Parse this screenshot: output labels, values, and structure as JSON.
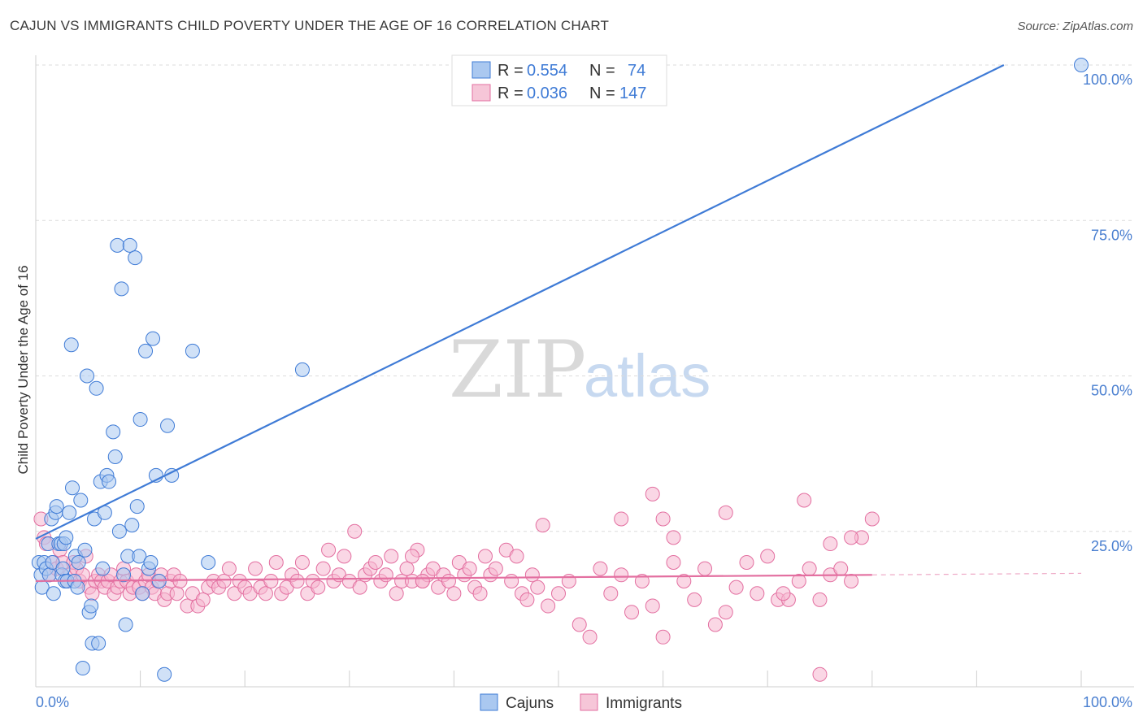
{
  "title": "CAJUN VS IMMIGRANTS CHILD POVERTY UNDER THE AGE OF 16 CORRELATION CHART",
  "source": "Source: ZipAtlas.com",
  "watermark": {
    "zip": "ZIP",
    "atlas": "atlas"
  },
  "colors": {
    "cajuns": "#3f7bd6",
    "immigrants": "#e36fa0",
    "cajun_fill": "#aac8f0",
    "immigrant_fill": "#f6b7cf"
  },
  "legend": {
    "r_label": "R =",
    "n_label": "N =",
    "rows": [
      {
        "r": "0.554",
        "n": "74"
      },
      {
        "r": "0.036",
        "n": "147"
      }
    ]
  },
  "bottom_legend": [
    "Cajuns",
    "Immigrants"
  ],
  "chart_data": {
    "type": "scatter",
    "ylabel": "Child Poverty Under the Age of 16",
    "xlim": [
      0,
      100
    ],
    "ylim": [
      0,
      100
    ],
    "x_tick_labels": {
      "left": "0.0%",
      "right": "100.0%"
    },
    "y_tick_labels": [
      {
        "value": 100,
        "label": "100.0%"
      },
      {
        "value": 75,
        "label": "75.0%"
      },
      {
        "value": 50,
        "label": "50.0%"
      },
      {
        "value": 25,
        "label": "25.0%"
      }
    ],
    "series": [
      {
        "name": "Cajuns",
        "trend": {
          "x0": 0,
          "y0": 23.8,
          "x1": 92.6,
          "y1": 100
        },
        "points": [
          [
            0.3,
            20
          ],
          [
            0.5,
            18
          ],
          [
            0.6,
            16
          ],
          [
            0.8,
            20
          ],
          [
            1,
            19
          ],
          [
            1.2,
            23
          ],
          [
            1.3,
            18
          ],
          [
            1.5,
            27
          ],
          [
            1.6,
            20
          ],
          [
            1.7,
            15
          ],
          [
            1.9,
            28
          ],
          [
            2,
            29
          ],
          [
            2.2,
            23
          ],
          [
            2.4,
            23
          ],
          [
            2.5,
            18
          ],
          [
            2.6,
            19
          ],
          [
            2.7,
            23
          ],
          [
            2.8,
            17
          ],
          [
            2.9,
            24
          ],
          [
            3,
            17
          ],
          [
            3.2,
            28
          ],
          [
            3.4,
            55
          ],
          [
            3.5,
            32
          ],
          [
            3.7,
            17
          ],
          [
            3.8,
            21
          ],
          [
            4,
            16
          ],
          [
            4.1,
            20
          ],
          [
            4.3,
            30
          ],
          [
            4.5,
            3
          ],
          [
            4.7,
            22
          ],
          [
            4.9,
            50
          ],
          [
            5.1,
            12
          ],
          [
            5.3,
            13
          ],
          [
            5.4,
            7
          ],
          [
            5.6,
            27
          ],
          [
            5.8,
            48
          ],
          [
            6,
            7
          ],
          [
            6.2,
            33
          ],
          [
            6.4,
            19
          ],
          [
            6.6,
            28
          ],
          [
            6.8,
            34
          ],
          [
            7,
            33
          ],
          [
            7.4,
            41
          ],
          [
            7.6,
            37
          ],
          [
            7.8,
            71
          ],
          [
            8,
            25
          ],
          [
            8.2,
            64
          ],
          [
            8.4,
            18
          ],
          [
            8.6,
            10
          ],
          [
            8.8,
            21
          ],
          [
            9,
            71
          ],
          [
            9.2,
            26
          ],
          [
            9.5,
            69
          ],
          [
            9.7,
            29
          ],
          [
            9.9,
            21
          ],
          [
            10,
            43
          ],
          [
            10.2,
            15
          ],
          [
            10.5,
            54
          ],
          [
            10.8,
            19
          ],
          [
            11,
            20
          ],
          [
            11.2,
            56
          ],
          [
            11.5,
            34
          ],
          [
            11.8,
            17
          ],
          [
            12.3,
            2
          ],
          [
            12.6,
            42
          ],
          [
            13,
            34
          ],
          [
            15,
            54
          ],
          [
            16.5,
            20
          ],
          [
            25.5,
            51
          ],
          [
            100,
            100
          ]
        ]
      },
      {
        "name": "Immigrants",
        "trend": {
          "x0": 0,
          "y0": 17,
          "x1": 80,
          "y1": 18
        },
        "points": [
          [
            0.5,
            27
          ],
          [
            0.8,
            24
          ],
          [
            1,
            23
          ],
          [
            1.3,
            18
          ],
          [
            1.6,
            20
          ],
          [
            2,
            19
          ],
          [
            2.3,
            22
          ],
          [
            2.6,
            20
          ],
          [
            3,
            17
          ],
          [
            3.3,
            18
          ],
          [
            3.6,
            20
          ],
          [
            3.9,
            19
          ],
          [
            4.2,
            17
          ],
          [
            4.5,
            18
          ],
          [
            4.8,
            21
          ],
          [
            5.1,
            16
          ],
          [
            5.4,
            15
          ],
          [
            5.7,
            17
          ],
          [
            6,
            18
          ],
          [
            6.3,
            17
          ],
          [
            6.6,
            16
          ],
          [
            6.9,
            17
          ],
          [
            7.2,
            18
          ],
          [
            7.5,
            15
          ],
          [
            7.8,
            16
          ],
          [
            8.1,
            17
          ],
          [
            8.4,
            19
          ],
          [
            8.7,
            17
          ],
          [
            9,
            15
          ],
          [
            9.3,
            16
          ],
          [
            9.6,
            18
          ],
          [
            9.9,
            16
          ],
          [
            10.2,
            15
          ],
          [
            10.5,
            17
          ],
          [
            10.8,
            18
          ],
          [
            11.1,
            16
          ],
          [
            11.4,
            15
          ],
          [
            11.7,
            17
          ],
          [
            12,
            18
          ],
          [
            12.3,
            14
          ],
          [
            12.6,
            15
          ],
          [
            12.9,
            17
          ],
          [
            13.2,
            18
          ],
          [
            13.5,
            15
          ],
          [
            13.8,
            17
          ],
          [
            14.5,
            13
          ],
          [
            15,
            15
          ],
          [
            15.5,
            13
          ],
          [
            16,
            14
          ],
          [
            16.5,
            16
          ],
          [
            17,
            17
          ],
          [
            17.5,
            16
          ],
          [
            18,
            17
          ],
          [
            18.5,
            19
          ],
          [
            19,
            15
          ],
          [
            19.5,
            17
          ],
          [
            20,
            16
          ],
          [
            20.5,
            15
          ],
          [
            21,
            19
          ],
          [
            21.5,
            16
          ],
          [
            22,
            15
          ],
          [
            22.5,
            17
          ],
          [
            23,
            20
          ],
          [
            23.5,
            15
          ],
          [
            24,
            16
          ],
          [
            24.5,
            18
          ],
          [
            25,
            17
          ],
          [
            25.5,
            20
          ],
          [
            26,
            15
          ],
          [
            26.5,
            17
          ],
          [
            27,
            16
          ],
          [
            27.5,
            19
          ],
          [
            28,
            22
          ],
          [
            28.5,
            17
          ],
          [
            29,
            18
          ],
          [
            29.5,
            21
          ],
          [
            30,
            17
          ],
          [
            30.5,
            25
          ],
          [
            31,
            16
          ],
          [
            31.5,
            18
          ],
          [
            32,
            19
          ],
          [
            32.5,
            20
          ],
          [
            33,
            17
          ],
          [
            33.5,
            18
          ],
          [
            34,
            21
          ],
          [
            34.5,
            15
          ],
          [
            35,
            17
          ],
          [
            35.5,
            19
          ],
          [
            36,
            17
          ],
          [
            36.5,
            22
          ],
          [
            37,
            17
          ],
          [
            37.5,
            18
          ],
          [
            38,
            19
          ],
          [
            38.5,
            16
          ],
          [
            39,
            18
          ],
          [
            39.5,
            17
          ],
          [
            40,
            15
          ],
          [
            40.5,
            20
          ],
          [
            41,
            18
          ],
          [
            41.5,
            19
          ],
          [
            42,
            16
          ],
          [
            42.5,
            15
          ],
          [
            43,
            21
          ],
          [
            43.5,
            18
          ],
          [
            44,
            19
          ],
          [
            45,
            22
          ],
          [
            45.5,
            17
          ],
          [
            46,
            21
          ],
          [
            46.5,
            15
          ],
          [
            47,
            14
          ],
          [
            47.5,
            18
          ],
          [
            48,
            16
          ],
          [
            49,
            13
          ],
          [
            50,
            15
          ],
          [
            51,
            17
          ],
          [
            52,
            10
          ],
          [
            53,
            8
          ],
          [
            54,
            19
          ],
          [
            55,
            15
          ],
          [
            56,
            18
          ],
          [
            57,
            12
          ],
          [
            58,
            17
          ],
          [
            59,
            13
          ],
          [
            60,
            8
          ],
          [
            61,
            20
          ],
          [
            62,
            17
          ],
          [
            63,
            14
          ],
          [
            64,
            19
          ],
          [
            65,
            10
          ],
          [
            66,
            12
          ],
          [
            67,
            16
          ],
          [
            68,
            20
          ],
          [
            69,
            15
          ],
          [
            70,
            21
          ],
          [
            71,
            14
          ],
          [
            72,
            14
          ],
          [
            73,
            17
          ],
          [
            74,
            19
          ],
          [
            75,
            2
          ],
          [
            76,
            18
          ],
          [
            77,
            19
          ],
          [
            78,
            17
          ],
          [
            79,
            24
          ],
          [
            56,
            27
          ],
          [
            59,
            31
          ],
          [
            60,
            27
          ],
          [
            61,
            24
          ],
          [
            73.5,
            30
          ],
          [
            76,
            23
          ],
          [
            78,
            24
          ],
          [
            80,
            27
          ],
          [
            66,
            28
          ],
          [
            48.5,
            26
          ],
          [
            36,
            21
          ],
          [
            37,
            17
          ],
          [
            75,
            14
          ],
          [
            71.5,
            15
          ]
        ]
      }
    ]
  }
}
